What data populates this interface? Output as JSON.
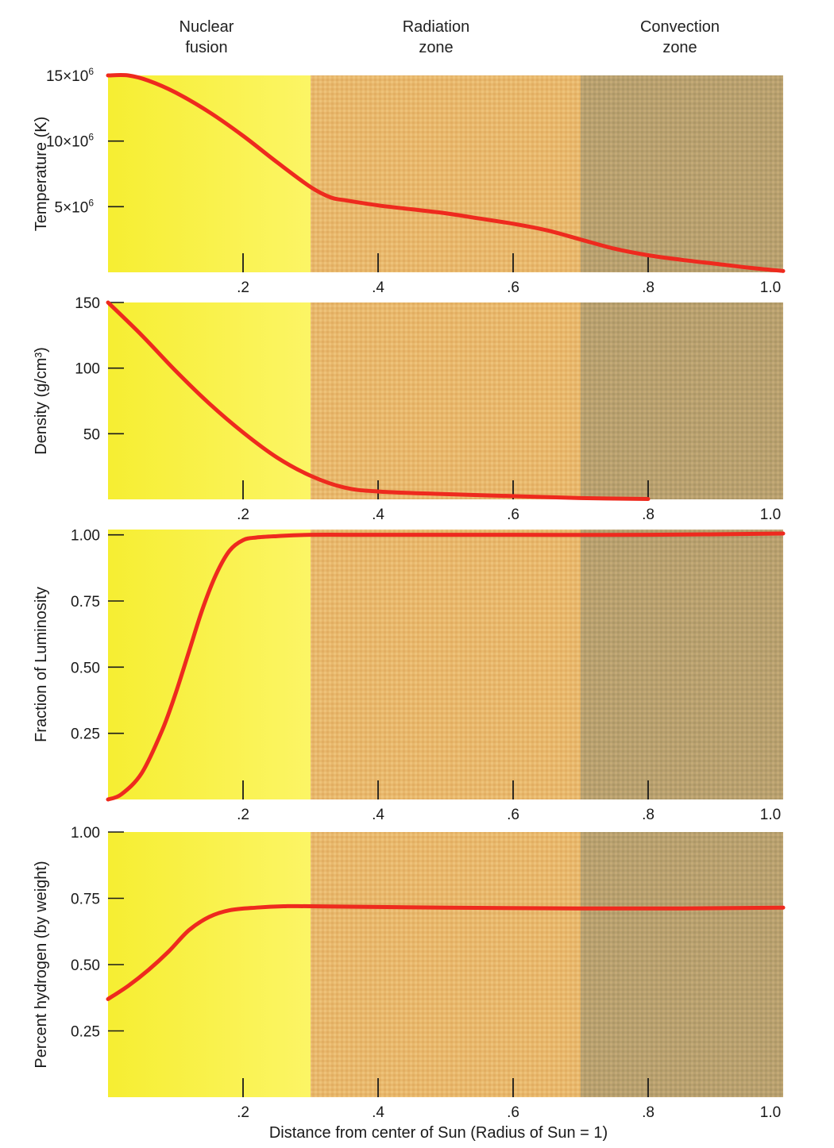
{
  "zones": [
    {
      "label_lines": [
        "Nuclear",
        "fusion"
      ],
      "x_start": 0.0,
      "x_end": 0.3,
      "color": "#fbf24a"
    },
    {
      "label_lines": [
        "Radiation",
        "zone"
      ],
      "x_start": 0.3,
      "x_end": 0.7,
      "color": "#e8b46a"
    },
    {
      "label_lines": [
        "Convection",
        "zone"
      ],
      "x_start": 0.7,
      "x_end": 1.0,
      "color": "#b8a06a"
    }
  ],
  "colors": {
    "curve": "#ee2a1e",
    "axis": "#1a1a1a"
  },
  "xlabel": "Distance from center of Sun (Radius of Sun = 1)",
  "chart_data": [
    {
      "type": "line",
      "ylabel": "Temperature (K)",
      "xlim": [
        0,
        1.0
      ],
      "ylim": [
        0,
        15000000
      ],
      "xticks": [
        {
          "value": 0.2,
          "label": ".2"
        },
        {
          "value": 0.4,
          "label": ".4"
        },
        {
          "value": 0.6,
          "label": ".6"
        },
        {
          "value": 0.8,
          "label": ".8"
        },
        {
          "value": 1.0,
          "label": "1.0"
        }
      ],
      "yticks": [
        {
          "value": 15000000,
          "base": "15×10",
          "exp": "6"
        },
        {
          "value": 10000000,
          "base": "10×10",
          "exp": "6"
        },
        {
          "value": 5000000,
          "base": "5×10",
          "exp": "6"
        }
      ],
      "series": [
        {
          "x": [
            0.0,
            0.03,
            0.06,
            0.1,
            0.15,
            0.2,
            0.25,
            0.3,
            0.33,
            0.35,
            0.4,
            0.45,
            0.5,
            0.55,
            0.6,
            0.65,
            0.7,
            0.75,
            0.8,
            0.85,
            0.9,
            0.95,
            1.0
          ],
          "y": [
            15000000,
            15000000,
            14600000,
            13700000,
            12200000,
            10400000,
            8400000,
            6500000,
            5700000,
            5500000,
            5100000,
            4800000,
            4500000,
            4100000,
            3700000,
            3200000,
            2500000,
            1800000,
            1300000,
            950000,
            650000,
            350000,
            100000
          ]
        }
      ]
    },
    {
      "type": "line",
      "ylabel": "Density (g/cm³)",
      "xlim": [
        0,
        1.0
      ],
      "ylim": [
        0,
        150
      ],
      "xticks": [
        {
          "value": 0.2,
          "label": ".2"
        },
        {
          "value": 0.4,
          "label": ".4"
        },
        {
          "value": 0.6,
          "label": ".6"
        },
        {
          "value": 0.8,
          "label": ".8"
        },
        {
          "value": 1.0,
          "label": "1.0"
        }
      ],
      "yticks": [
        {
          "value": 150,
          "label": "150"
        },
        {
          "value": 100,
          "label": "100"
        },
        {
          "value": 50,
          "label": "50"
        }
      ],
      "series": [
        {
          "x": [
            0.0,
            0.05,
            0.1,
            0.15,
            0.2,
            0.25,
            0.3,
            0.35,
            0.4,
            0.5,
            0.6,
            0.7,
            0.8
          ],
          "y": [
            150,
            125,
            98,
            73,
            51,
            32,
            18,
            9,
            6,
            4,
            2.5,
            1,
            0.3
          ]
        }
      ]
    },
    {
      "type": "line",
      "ylabel": "Fraction of Luminosity",
      "xlim": [
        0,
        1.0
      ],
      "ylim": [
        0,
        1.02
      ],
      "xticks": [
        {
          "value": 0.2,
          "label": ".2"
        },
        {
          "value": 0.4,
          "label": ".4"
        },
        {
          "value": 0.6,
          "label": ".6"
        },
        {
          "value": 0.8,
          "label": ".8"
        },
        {
          "value": 1.0,
          "label": "1.0"
        }
      ],
      "yticks": [
        {
          "value": 1.0,
          "label": "1.00"
        },
        {
          "value": 0.75,
          "label": "0.75"
        },
        {
          "value": 0.5,
          "label": "0.50"
        },
        {
          "value": 0.25,
          "label": "0.25"
        }
      ],
      "series": [
        {
          "x": [
            0.0,
            0.02,
            0.05,
            0.08,
            0.1,
            0.12,
            0.14,
            0.16,
            0.18,
            0.2,
            0.22,
            0.25,
            0.3,
            0.4,
            0.6,
            0.8,
            1.0
          ],
          "y": [
            0.0,
            0.02,
            0.1,
            0.26,
            0.4,
            0.56,
            0.72,
            0.85,
            0.94,
            0.98,
            0.99,
            0.995,
            1.0,
            1.0,
            1.0,
            1.0,
            1.005
          ]
        }
      ]
    },
    {
      "type": "line",
      "ylabel": "Percent hydrogen (by weight)",
      "xlim": [
        0,
        1.0
      ],
      "ylim": [
        0,
        1.0
      ],
      "xticks": [
        {
          "value": 0.2,
          "label": ".2"
        },
        {
          "value": 0.4,
          "label": ".4"
        },
        {
          "value": 0.6,
          "label": ".6"
        },
        {
          "value": 0.8,
          "label": ".8"
        },
        {
          "value": 1.0,
          "label": "1.0"
        }
      ],
      "yticks": [
        {
          "value": 1.0,
          "label": "1.00"
        },
        {
          "value": 0.75,
          "label": "0.75"
        },
        {
          "value": 0.5,
          "label": "0.50"
        },
        {
          "value": 0.25,
          "label": "0.25"
        }
      ],
      "series": [
        {
          "x": [
            0.0,
            0.03,
            0.06,
            0.09,
            0.12,
            0.15,
            0.18,
            0.22,
            0.26,
            0.3,
            0.5,
            0.7,
            0.85,
            1.0
          ],
          "y": [
            0.37,
            0.42,
            0.48,
            0.55,
            0.63,
            0.68,
            0.705,
            0.715,
            0.72,
            0.72,
            0.715,
            0.712,
            0.712,
            0.715
          ]
        }
      ]
    }
  ]
}
